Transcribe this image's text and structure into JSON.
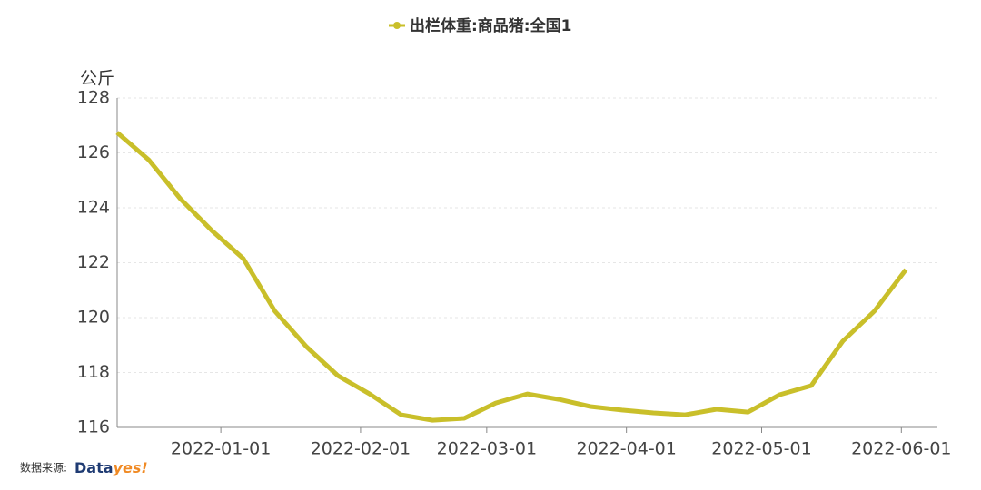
{
  "chart_data": {
    "type": "line",
    "title": "出栏体重:商品猪:全国1",
    "y_unit": "公斤",
    "source": {
      "label": "数据来源:",
      "brand": "Data",
      "brand_accent": "yes!"
    },
    "x": [
      "2021-12-09",
      "2021-12-16",
      "2021-12-23",
      "2021-12-30",
      "2022-01-06",
      "2022-01-13",
      "2022-01-20",
      "2022-01-27",
      "2022-02-03",
      "2022-02-10",
      "2022-02-17",
      "2022-02-24",
      "2022-03-03",
      "2022-03-10",
      "2022-03-17",
      "2022-03-24",
      "2022-03-31",
      "2022-04-07",
      "2022-04-14",
      "2022-04-21",
      "2022-04-28",
      "2022-05-05",
      "2022-05-12",
      "2022-05-19",
      "2022-05-26",
      "2022-06-02"
    ],
    "series": [
      {
        "name": "出栏体重:商品猪:全国1",
        "color": "#c9bf2a",
        "values": [
          126.74,
          125.75,
          124.33,
          123.17,
          122.15,
          120.23,
          118.94,
          117.88,
          117.22,
          116.46,
          116.26,
          116.33,
          116.89,
          117.22,
          117.02,
          116.76,
          116.63,
          116.53,
          116.46,
          116.66,
          116.56,
          117.19,
          117.52,
          119.14,
          120.23,
          121.75
        ]
      }
    ],
    "xlim": [
      "2021-12-09",
      "2022-06-09"
    ],
    "xticks": [
      "2022-01-01",
      "2022-02-01",
      "2022-03-01",
      "2022-04-01",
      "2022-05-01",
      "2022-06-01"
    ],
    "ylim": [
      116,
      128
    ],
    "yticks": [
      116,
      118,
      120,
      122,
      124,
      126,
      128
    ],
    "grid": true
  }
}
